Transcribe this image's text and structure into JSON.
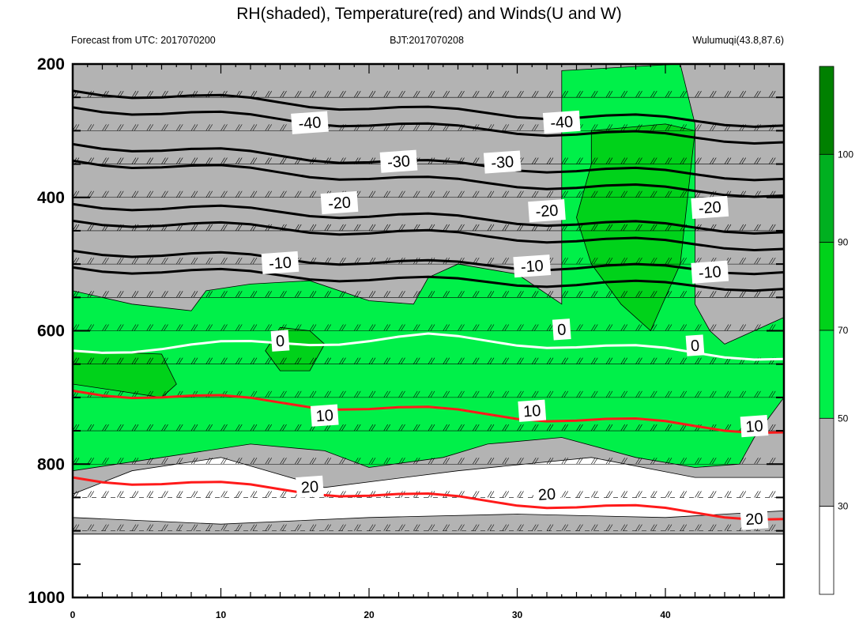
{
  "title": "RH(shaded), Temperature(red) and Winds(U and W)",
  "subtitle_left": "Forecast from UTC: 2017070200",
  "subtitle_center": "BJT:2017070208",
  "subtitle_right": "Wulumuqi(43.8,87.6)",
  "colors": {
    "rh_30_50": "#b3b3b3",
    "rh_50_70": "#00f049",
    "rh_70_90": "#00d21a",
    "rh_90_100": "#00b020",
    "rh_100_plus": "#008000",
    "temp_warm": "#ff1a1a",
    "temp_zero": "#ffffff",
    "temp_cold": "#000000"
  },
  "chart_data": {
    "type": "heatmap",
    "title": "RH(shaded), Temperature(red) and Winds(U and W)",
    "x_ticks": [
      0,
      10,
      20,
      30,
      40
    ],
    "xlim": [
      0,
      48
    ],
    "y_ticks": [
      200,
      400,
      600,
      800,
      1000
    ],
    "ylim": [
      1000,
      200
    ],
    "colorbar": {
      "levels": [
        30,
        50,
        70,
        90,
        100
      ]
    },
    "rh_regions": [
      {
        "level": 30,
        "points": [
          [
            0,
            200
          ],
          [
            48,
            200
          ],
          [
            48,
            820
          ],
          [
            42,
            820
          ],
          [
            35,
            790
          ],
          [
            26,
            810
          ],
          [
            17,
            835
          ],
          [
            10,
            790
          ],
          [
            4,
            810
          ],
          [
            0,
            845
          ],
          [
            0,
            880
          ],
          [
            10,
            890
          ],
          [
            20,
            880
          ],
          [
            30,
            875
          ],
          [
            40,
            880
          ],
          [
            48,
            870
          ],
          [
            48,
            905
          ],
          [
            0,
            905
          ]
        ]
      },
      {
        "level": 50,
        "points": [
          [
            0,
            540
          ],
          [
            4,
            560
          ],
          [
            8,
            570
          ],
          [
            9,
            540
          ],
          [
            12,
            530
          ],
          [
            16,
            525
          ],
          [
            20,
            555
          ],
          [
            23,
            560
          ],
          [
            24,
            520
          ],
          [
            26,
            500
          ],
          [
            30,
            515
          ],
          [
            33,
            560
          ],
          [
            33,
            210
          ],
          [
            41,
            200
          ],
          [
            42,
            290
          ],
          [
            42,
            560
          ],
          [
            43,
            600
          ],
          [
            44,
            620
          ],
          [
            48,
            580
          ],
          [
            48,
            700
          ],
          [
            46,
            760
          ],
          [
            45,
            800
          ],
          [
            42,
            805
          ],
          [
            38,
            790
          ],
          [
            33,
            760
          ],
          [
            28,
            770
          ],
          [
            25,
            790
          ],
          [
            20,
            805
          ],
          [
            17,
            780
          ],
          [
            12,
            770
          ],
          [
            6,
            790
          ],
          [
            0,
            810
          ]
        ]
      },
      {
        "level": 70,
        "points": [
          [
            0,
            630
          ],
          [
            6,
            635
          ],
          [
            7,
            680
          ],
          [
            6,
            700
          ],
          [
            3,
            690
          ],
          [
            0,
            680
          ]
        ]
      },
      {
        "level": 70,
        "points": [
          [
            14,
            595
          ],
          [
            16,
            600
          ],
          [
            17,
            620
          ],
          [
            16,
            660
          ],
          [
            14,
            660
          ],
          [
            13,
            630
          ]
        ]
      },
      {
        "level": 70,
        "points": [
          [
            35,
            300
          ],
          [
            40,
            290
          ],
          [
            42,
            300
          ],
          [
            41,
            500
          ],
          [
            39,
            600
          ],
          [
            37,
            560
          ],
          [
            35,
            500
          ],
          [
            34,
            430
          ],
          [
            35,
            350
          ]
        ]
      }
    ],
    "temperature_contours": [
      {
        "value": -40,
        "y": [
          240,
          270,
          290
        ]
      },
      {
        "value": -30,
        "y": [
          320,
          350,
          370
        ]
      },
      {
        "value": -20,
        "y": [
          410,
          430,
          450
        ]
      },
      {
        "value": -10,
        "y": [
          480,
          500,
          510
        ]
      },
      {
        "value": 0,
        "y": [
          630,
          610,
          640
        ]
      },
      {
        "value": 10,
        "y": [
          690,
          720,
          750
        ]
      },
      {
        "value": 20,
        "y": [
          820,
          850,
          880
        ]
      }
    ],
    "contour_labels": [
      {
        "text": "-40",
        "x": 16,
        "y": 288,
        "color": "black"
      },
      {
        "text": "-40",
        "x": 33,
        "y": 287,
        "color": "black"
      },
      {
        "text": "-30",
        "x": 22,
        "y": 346,
        "color": "black"
      },
      {
        "text": "-30",
        "x": 29,
        "y": 347,
        "color": "black"
      },
      {
        "text": "-20",
        "x": 18,
        "y": 408,
        "color": "black"
      },
      {
        "text": "-20",
        "x": 32,
        "y": 420,
        "color": "black"
      },
      {
        "text": "-20",
        "x": 43,
        "y": 415,
        "color": "black"
      },
      {
        "text": "-10",
        "x": 14,
        "y": 498,
        "color": "black"
      },
      {
        "text": "-10",
        "x": 31,
        "y": 503,
        "color": "black"
      },
      {
        "text": "-10",
        "x": 43,
        "y": 512,
        "color": "black"
      },
      {
        "text": "0",
        "x": 14,
        "y": 615,
        "color": "white"
      },
      {
        "text": "0",
        "x": 33,
        "y": 598,
        "color": "white"
      },
      {
        "text": "0",
        "x": 42,
        "y": 622,
        "color": "white"
      },
      {
        "text": "10",
        "x": 17,
        "y": 727,
        "color": "red"
      },
      {
        "text": "10",
        "x": 31,
        "y": 720,
        "color": "red"
      },
      {
        "text": "10",
        "x": 46,
        "y": 743,
        "color": "red"
      },
      {
        "text": "20",
        "x": 16,
        "y": 834,
        "color": "red"
      },
      {
        "text": "20",
        "x": 32,
        "y": 845,
        "color": "red"
      },
      {
        "text": "20",
        "x": 46,
        "y": 882,
        "color": "red"
      }
    ]
  }
}
